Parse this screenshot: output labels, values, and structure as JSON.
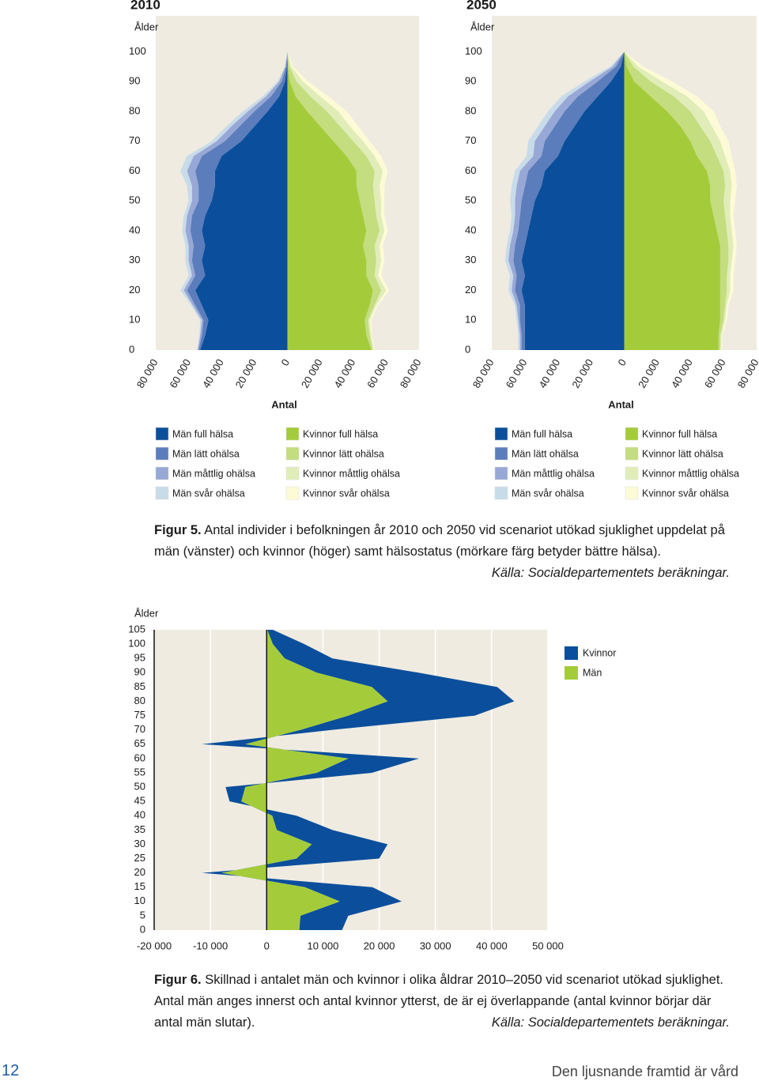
{
  "chart_data": [
    {
      "type": "pyramid",
      "title": "2010",
      "ylabel": "Ålder",
      "xlabel": "Antal",
      "ylim": [
        0,
        112
      ],
      "yticks": [
        0,
        10,
        20,
        30,
        40,
        50,
        60,
        70,
        80,
        90,
        100
      ],
      "xlim": [
        -80000,
        80000
      ],
      "xticks": [
        {
          "value": -80000,
          "label": "80 000"
        },
        {
          "value": -60000,
          "label": "60 000"
        },
        {
          "value": -40000,
          "label": "40 000"
        },
        {
          "value": -20000,
          "label": "20 000"
        },
        0,
        {
          "value": 20000,
          "label": "20 000"
        },
        {
          "value": 40000,
          "label": "40 000"
        },
        {
          "value": 60000,
          "label": "60 000"
        },
        {
          "value": 80000,
          "label": "80 000"
        }
      ],
      "ages": [
        0,
        5,
        10,
        15,
        20,
        25,
        30,
        35,
        40,
        45,
        50,
        55,
        60,
        65,
        70,
        75,
        80,
        85,
        90,
        95,
        100
      ],
      "series": [
        {
          "name": "Män full hälsa",
          "side": "left",
          "color": "#0b4f9c",
          "values": [
            53000,
            50000,
            48000,
            52000,
            56000,
            50000,
            52000,
            50000,
            52000,
            50000,
            46000,
            44000,
            44000,
            40000,
            28000,
            20000,
            12000,
            5000,
            1500,
            300,
            0
          ]
        },
        {
          "name": "Män lätt ohälsa",
          "side": "left",
          "color": "#5b7dbc",
          "values": [
            1000,
            2000,
            3000,
            4000,
            5000,
            6000,
            6000,
            7000,
            7000,
            8000,
            8000,
            10000,
            12000,
            12000,
            10000,
            9000,
            8000,
            5000,
            2000,
            500,
            0
          ]
        },
        {
          "name": "Män måttlig ohälsa",
          "side": "left",
          "color": "#97a8d6",
          "values": [
            500,
            1000,
            1000,
            1500,
            2000,
            2000,
            2000,
            3000,
            3000,
            3000,
            4000,
            4000,
            5000,
            5000,
            5000,
            5000,
            4000,
            3000,
            1500,
            500,
            0
          ]
        },
        {
          "name": "Män svår ohälsa",
          "side": "left",
          "color": "#c8dbe9",
          "values": [
            500,
            500,
            1000,
            1000,
            2000,
            2000,
            2000,
            2000,
            2000,
            2000,
            2000,
            3000,
            4000,
            4000,
            3000,
            3000,
            3000,
            2000,
            1000,
            300,
            0
          ]
        },
        {
          "name": "Kvinnor full hälsa",
          "side": "right",
          "color": "#a4cc3a",
          "values": [
            51000,
            48000,
            47000,
            50000,
            52000,
            48000,
            48000,
            46000,
            48000,
            46000,
            44000,
            42000,
            42000,
            36000,
            28000,
            20000,
            12000,
            5000,
            1500,
            300,
            0
          ]
        },
        {
          "name": "Kvinnor lätt ohälsa",
          "side": "right",
          "color": "#c4dd7f",
          "values": [
            1000,
            2000,
            2000,
            3000,
            5000,
            5000,
            6000,
            7000,
            8000,
            8000,
            9000,
            10000,
            11000,
            12000,
            12000,
            12000,
            12000,
            9000,
            4000,
            1000,
            0
          ]
        },
        {
          "name": "Kvinnor måttlig ohälsa",
          "side": "right",
          "color": "#e0edb8",
          "values": [
            500,
            1000,
            1000,
            1000,
            3000,
            2000,
            3000,
            3000,
            3000,
            3000,
            4000,
            4000,
            5000,
            5000,
            6000,
            6000,
            7000,
            6000,
            4000,
            1200,
            0
          ]
        },
        {
          "name": "Kvinnor svår ohälsa",
          "side": "right",
          "color": "#fdfbd6",
          "values": [
            500,
            500,
            1000,
            1000,
            2000,
            2000,
            2000,
            2000,
            2000,
            2000,
            2000,
            3000,
            3000,
            4000,
            4000,
            5000,
            5000,
            5000,
            3000,
            1000,
            0
          ]
        }
      ]
    },
    {
      "type": "pyramid",
      "title": "2050",
      "ylabel": "Ålder",
      "xlabel": "Antal",
      "ylim": [
        0,
        112
      ],
      "yticks": [
        0,
        10,
        20,
        30,
        40,
        50,
        60,
        70,
        80,
        90,
        100
      ],
      "xlim": [
        -80000,
        80000
      ],
      "xticks": [
        {
          "value": -80000,
          "label": "80 000"
        },
        {
          "value": -60000,
          "label": "60 000"
        },
        {
          "value": -40000,
          "label": "40 000"
        },
        {
          "value": -20000,
          "label": "20 000"
        },
        0,
        {
          "value": 20000,
          "label": "20 000"
        },
        {
          "value": 40000,
          "label": "40 000"
        },
        {
          "value": 60000,
          "label": "60 000"
        },
        {
          "value": 80000,
          "label": "80 000"
        }
      ],
      "ages": [
        0,
        5,
        10,
        15,
        20,
        25,
        30,
        35,
        40,
        45,
        50,
        55,
        60,
        65,
        70,
        75,
        80,
        85,
        90,
        95,
        100
      ],
      "series": [
        {
          "name": "Män full hälsa",
          "side": "left",
          "color": "#0b4f9c",
          "values": [
            60000,
            60000,
            60000,
            60000,
            62000,
            60000,
            62000,
            60000,
            58000,
            56000,
            54000,
            50000,
            48000,
            40000,
            36000,
            30000,
            24000,
            16000,
            8000,
            2000,
            0
          ]
        },
        {
          "name": "Män lätt ohälsa",
          "side": "left",
          "color": "#5b7dbc",
          "values": [
            2000,
            2000,
            3000,
            3000,
            4000,
            5000,
            5000,
            6000,
            6000,
            7000,
            8000,
            10000,
            10000,
            10000,
            12000,
            12000,
            12000,
            12000,
            8000,
            3000,
            0
          ]
        },
        {
          "name": "Män måttlig ohälsa",
          "side": "left",
          "color": "#97a8d6",
          "values": [
            1000,
            1000,
            1000,
            2000,
            2000,
            2000,
            3000,
            3000,
            3000,
            3000,
            4000,
            5000,
            5000,
            5000,
            6000,
            6000,
            6000,
            6000,
            5000,
            2000,
            0
          ]
        },
        {
          "name": "Män svår ohälsa",
          "side": "left",
          "color": "#c8dbe9",
          "values": [
            1000,
            1000,
            1000,
            1000,
            2000,
            2000,
            2000,
            2000,
            2000,
            2000,
            3000,
            3000,
            3000,
            4000,
            4000,
            4000,
            4000,
            4000,
            3000,
            1500,
            0
          ]
        },
        {
          "name": "Kvinnor full hälsa",
          "side": "right",
          "color": "#a4cc3a",
          "values": [
            57000,
            57000,
            58000,
            58000,
            58000,
            58000,
            58000,
            58000,
            56000,
            54000,
            52000,
            52000,
            50000,
            44000,
            40000,
            34000,
            26000,
            16000,
            6000,
            1500,
            0
          ]
        },
        {
          "name": "Kvinnor lätt ohälsa",
          "side": "right",
          "color": "#c4dd7f",
          "values": [
            1000,
            1000,
            2000,
            3000,
            4000,
            4000,
            5000,
            5000,
            6000,
            7000,
            8000,
            9000,
            10000,
            12000,
            12000,
            12000,
            14000,
            14000,
            10000,
            4000,
            0
          ]
        },
        {
          "name": "Kvinnor måttlig ohälsa",
          "side": "right",
          "color": "#e0edb8",
          "values": [
            500,
            1000,
            1000,
            1000,
            2000,
            2000,
            2000,
            3000,
            3000,
            3000,
            4000,
            4000,
            4000,
            5000,
            6000,
            7000,
            8000,
            8000,
            7000,
            3000,
            0
          ]
        },
        {
          "name": "Kvinnor svår ohälsa",
          "side": "right",
          "color": "#fdfbd6",
          "values": [
            500,
            500,
            1000,
            1000,
            2000,
            2000,
            2000,
            2000,
            2000,
            2000,
            3000,
            3000,
            3000,
            4000,
            5000,
            5000,
            6000,
            6000,
            6000,
            3000,
            0
          ]
        }
      ]
    },
    {
      "type": "diverging-area",
      "ylabel": "Ålder",
      "ylim": [
        0,
        105
      ],
      "yticks": [
        0,
        5,
        10,
        15,
        20,
        25,
        30,
        35,
        40,
        45,
        50,
        55,
        60,
        65,
        70,
        75,
        80,
        85,
        90,
        95,
        100,
        105
      ],
      "xlim": [
        -20000,
        50000
      ],
      "xticks": [
        {
          "value": -20000,
          "label": "-20 000"
        },
        {
          "value": -10000,
          "label": "-10 000"
        },
        0,
        {
          "value": 10000,
          "label": "10 000"
        },
        {
          "value": 20000,
          "label": "20 000"
        },
        {
          "value": 30000,
          "label": "30 000"
        },
        {
          "value": 40000,
          "label": "40 000"
        },
        {
          "value": 50000,
          "label": "50 000"
        }
      ],
      "grid": true,
      "ages": [
        0,
        5,
        10,
        15,
        20,
        25,
        30,
        35,
        40,
        45,
        50,
        55,
        60,
        65,
        70,
        75,
        80,
        85,
        90,
        95,
        100,
        105
      ],
      "series": [
        {
          "name": "Kvinnor",
          "color": "#0b4f9c",
          "values": [
            7600,
            8500,
            11000,
            12000,
            -3500,
            14700,
            13500,
            9900,
            4300,
            -2100,
            -3500,
            9800,
            12600,
            -7700,
            5700,
            22500,
            22500,
            22300,
            18100,
            8500,
            5600,
            1000
          ]
        },
        {
          "name": "Män",
          "color": "#a4cc3a",
          "values": [
            5800,
            6000,
            13000,
            6800,
            -8000,
            5300,
            8000,
            1800,
            1000,
            -4500,
            -3800,
            8900,
            14500,
            -3800,
            6000,
            14500,
            21500,
            18700,
            8900,
            3200,
            1100,
            100
          ]
        }
      ]
    }
  ],
  "captions": [
    {
      "label": "Figur 5.",
      "text": "Antal individer i befolkningen år 2010 och 2050 vid scenariot utökad sjuklighet uppdelat på män (vänster) och kvinnor (höger) samt hälsostatus (mörkare färg betyder bättre hälsa).",
      "source": "Källa: Socialdepartementets beräkningar."
    },
    {
      "label": "Figur 6.",
      "text": "Skillnad i antalet män och kvinnor i olika åldrar 2010–2050 vid scenariot utökad sjuklighet. Antal män anges innerst och antal kvinnor ytterst, de är ej överlappande (antal kvinnor börjar där antal män slutar).",
      "source": "Källa: Socialdepartementets beräkningar."
    }
  ],
  "footer": {
    "page": "12",
    "text": "Den ljusnande framtid är vård"
  }
}
